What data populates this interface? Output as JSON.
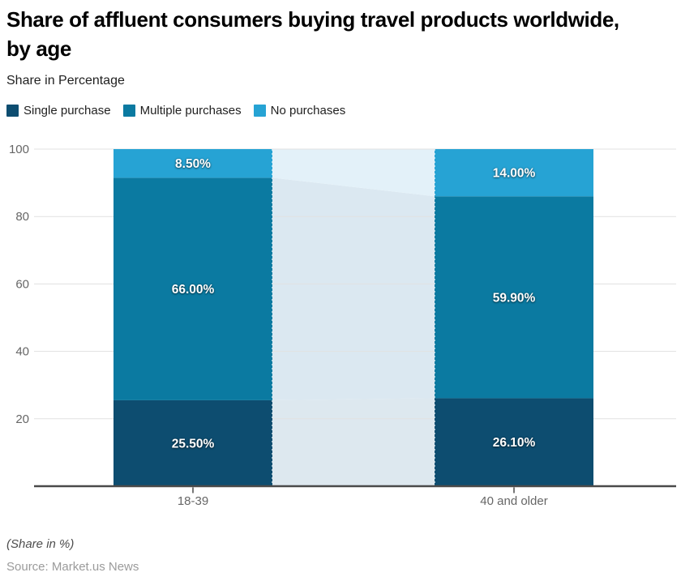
{
  "title": "Share of affluent consumers buying travel products worldwide, by age",
  "subtitle": "Share in Percentage",
  "legend": [
    {
      "label": "Single purchase",
      "color": "#0d4d70"
    },
    {
      "label": "Multiple purchases",
      "color": "#0b7aa1"
    },
    {
      "label": "No purchases",
      "color": "#26a3d4"
    }
  ],
  "footer": {
    "note": "(Share in %)",
    "source": "Source: Market.us News"
  },
  "chart_data": {
    "type": "bar",
    "stacked": true,
    "categories": [
      "18-39",
      "40 and older"
    ],
    "series": [
      {
        "name": "Single purchase",
        "color": "#0d4d70",
        "values": [
          25.5,
          26.1
        ],
        "labels": [
          "25.50%",
          "26.10%"
        ]
      },
      {
        "name": "Multiple purchases",
        "color": "#0b7aa1",
        "values": [
          66.0,
          59.9
        ],
        "labels": [
          "66.00%",
          "59.90%"
        ]
      },
      {
        "name": "No purchases",
        "color": "#26a3d4",
        "values": [
          8.5,
          14.0
        ],
        "labels": [
          "8.50%",
          "14.00%"
        ]
      }
    ],
    "connector_colors": [
      "#dde8ef",
      "#dbe8f1",
      "#e3f1f9"
    ],
    "yticks": [
      20,
      40,
      60,
      80,
      100
    ],
    "ylim": [
      0,
      100
    ],
    "grid": true,
    "grid_color": "#e1e1e1",
    "axis_color": "#4a4a4a",
    "tick_label_color": "#666666",
    "legend_position": "top-left"
  }
}
